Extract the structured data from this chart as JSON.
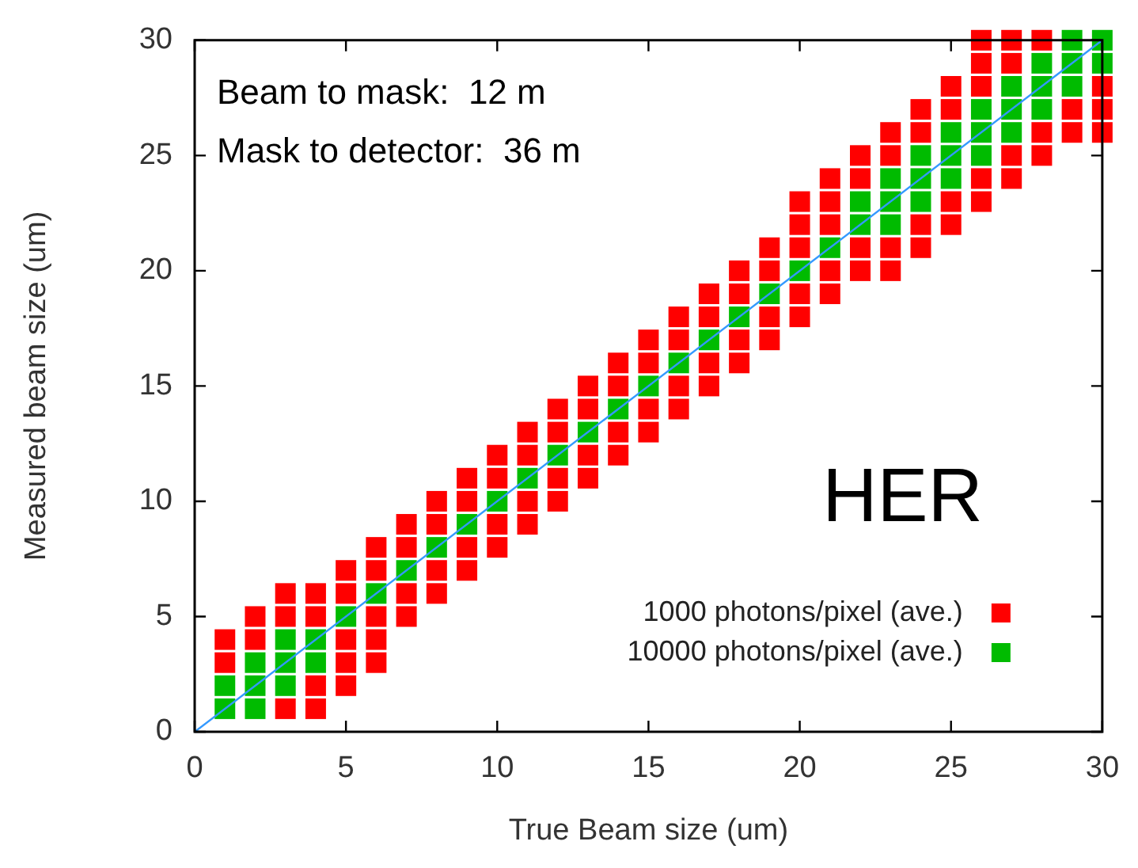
{
  "chart_data": {
    "type": "scatter",
    "xlabel": "True Beam size (um)",
    "ylabel": "Measured beam size (um)",
    "annotations": [
      "Beam to mask:  12 m",
      "Mask to detector:  36 m",
      "HER"
    ],
    "xlim": [
      0,
      30
    ],
    "ylim": [
      0,
      30
    ],
    "xticks": [
      0,
      5,
      10,
      15,
      20,
      25,
      30
    ],
    "yticks": [
      0,
      5,
      10,
      15,
      20,
      25,
      30
    ],
    "marker": "square",
    "legend": "bottom right",
    "series": [
      {
        "name": "1000 photons/pixel (ave.)",
        "color": "#ff0000",
        "x": [
          1,
          1,
          2,
          2,
          3,
          3,
          3,
          4,
          4,
          4,
          4,
          5,
          5,
          5,
          5,
          5,
          6,
          6,
          6,
          6,
          6,
          7,
          7,
          7,
          7,
          8,
          8,
          8,
          8,
          9,
          9,
          9,
          9,
          10,
          10,
          10,
          10,
          11,
          11,
          11,
          11,
          12,
          12,
          12,
          12,
          13,
          13,
          13,
          13,
          14,
          14,
          14,
          14,
          15,
          15,
          15,
          15,
          16,
          16,
          16,
          16,
          17,
          17,
          17,
          17,
          18,
          18,
          18,
          18,
          19,
          19,
          19,
          19,
          20,
          20,
          20,
          20,
          20,
          21,
          21,
          21,
          21,
          21,
          22,
          22,
          22,
          22,
          23,
          23,
          23,
          23,
          24,
          24,
          24,
          24,
          25,
          25,
          25,
          25,
          26,
          26,
          26,
          26,
          26,
          27,
          27,
          27,
          27,
          28,
          28,
          28,
          29,
          29,
          30,
          30,
          30
        ],
        "values": [
          4,
          3,
          5,
          4,
          6,
          5,
          1,
          6,
          5,
          2,
          1,
          7,
          6,
          4,
          3,
          2,
          8,
          7,
          5,
          4,
          3,
          9,
          8,
          6,
          5,
          10,
          9,
          7,
          6,
          11,
          10,
          8,
          7,
          12,
          11,
          9,
          8,
          13,
          12,
          10,
          9,
          14,
          13,
          11,
          10,
          15,
          14,
          12,
          11,
          16,
          15,
          13,
          12,
          17,
          16,
          14,
          13,
          18,
          17,
          15,
          14,
          19,
          18,
          16,
          15,
          20,
          19,
          17,
          16,
          21,
          20,
          18,
          17,
          23,
          22,
          21,
          19,
          18,
          24,
          23,
          22,
          20,
          19,
          25,
          24,
          21,
          20,
          26,
          25,
          21,
          20,
          27,
          26,
          22,
          21,
          28,
          27,
          23,
          22,
          30,
          29,
          28,
          24,
          23,
          30,
          29,
          25,
          24,
          30,
          26,
          25,
          27,
          26,
          28,
          27,
          26
        ]
      },
      {
        "name": "10000 photons/pixel (ave.)",
        "color": "#00bb00",
        "x": [
          1,
          1,
          2,
          2,
          2,
          3,
          3,
          3,
          4,
          4,
          5,
          6,
          7,
          8,
          9,
          10,
          11,
          12,
          13,
          14,
          15,
          16,
          17,
          18,
          19,
          20,
          21,
          22,
          22,
          23,
          23,
          23,
          24,
          24,
          24,
          25,
          25,
          25,
          26,
          26,
          26,
          27,
          27,
          27,
          28,
          28,
          28,
          29,
          29,
          29,
          30,
          30
        ],
        "values": [
          2,
          1,
          3,
          2,
          1,
          4,
          3,
          2,
          4,
          3,
          5,
          6,
          7,
          8,
          9,
          10,
          11,
          12,
          13,
          14,
          15,
          16,
          17,
          18,
          19,
          20,
          21,
          23,
          22,
          24,
          23,
          22,
          25,
          24,
          23,
          26,
          25,
          24,
          27,
          26,
          25,
          28,
          27,
          26,
          29,
          28,
          27,
          30,
          29,
          28,
          30,
          29
        ]
      },
      {
        "type": "line",
        "marker": "none",
        "color": "#3399ff",
        "x": [
          0,
          30
        ],
        "values": [
          0,
          30
        ]
      }
    ]
  }
}
